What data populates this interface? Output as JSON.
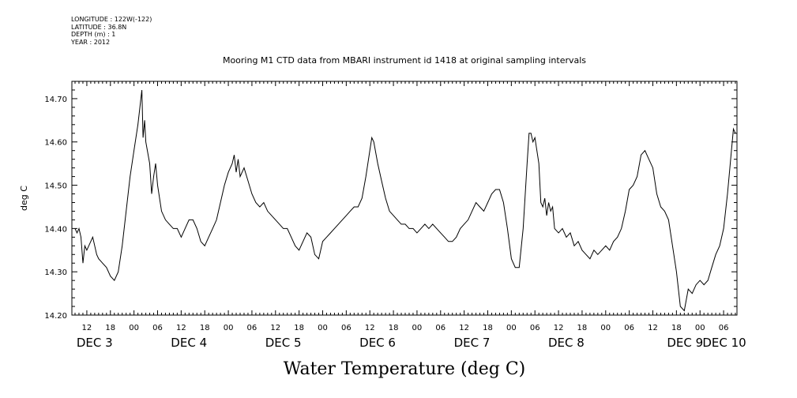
{
  "metadata": [
    "LONGITUDE : 122W(-122)",
    "LATITUDE : 36.8N",
    "DEPTH (m) : 1",
    "YEAR : 2012"
  ],
  "chart_data": {
    "type": "line",
    "title": "Mooring M1 CTD data from MBARI instrument id 1418 at original sampling intervals",
    "xlabel": "Water Temperature (deg C)",
    "ylabel": "deg C",
    "ylim": [
      14.2,
      14.74
    ],
    "xlim_hours": [
      0,
      168
    ],
    "y_ticks": [
      "14.20",
      "14.30",
      "14.40",
      "14.50",
      "14.60",
      "14.70"
    ],
    "x_hour_ticks": [
      "12",
      "18",
      "00",
      "06",
      "12",
      "18",
      "00",
      "06",
      "12",
      "18",
      "00",
      "06",
      "12",
      "18",
      "00",
      "06",
      "12",
      "18",
      "00",
      "06",
      "12",
      "18",
      "00",
      "06",
      "12",
      "18",
      "00",
      "06"
    ],
    "x_day_labels": [
      "DEC  3",
      "DEC  4",
      "DEC  5",
      "DEC  6",
      "DEC  7",
      "DEC  8",
      "DEC  9",
      "DEC 10"
    ],
    "series": [
      {
        "name": "",
        "points": [
          [
            0,
            14.4
          ],
          [
            0.5,
            14.39
          ],
          [
            1,
            14.4
          ],
          [
            1.5,
            14.38
          ],
          [
            2,
            14.32
          ],
          [
            2.5,
            14.36
          ],
          [
            3,
            14.35
          ],
          [
            3.5,
            14.36
          ],
          [
            4,
            14.37
          ],
          [
            4.5,
            14.38
          ],
          [
            5,
            14.36
          ],
          [
            5.5,
            14.34
          ],
          [
            6,
            14.33
          ],
          [
            7,
            14.32
          ],
          [
            8,
            14.31
          ],
          [
            9,
            14.29
          ],
          [
            10,
            14.28
          ],
          [
            11,
            14.3
          ],
          [
            12,
            14.36
          ],
          [
            13,
            14.44
          ],
          [
            14,
            14.52
          ],
          [
            15,
            14.58
          ],
          [
            16,
            14.64
          ],
          [
            16.5,
            14.68
          ],
          [
            17,
            14.72
          ],
          [
            17.3,
            14.61
          ],
          [
            17.7,
            14.65
          ],
          [
            18,
            14.6
          ],
          [
            19,
            14.55
          ],
          [
            19.5,
            14.48
          ],
          [
            20,
            14.52
          ],
          [
            20.5,
            14.55
          ],
          [
            21,
            14.5
          ],
          [
            22,
            14.44
          ],
          [
            23,
            14.42
          ],
          [
            24,
            14.41
          ],
          [
            25,
            14.4
          ],
          [
            26,
            14.4
          ],
          [
            27,
            14.38
          ],
          [
            28,
            14.4
          ],
          [
            29,
            14.42
          ],
          [
            30,
            14.42
          ],
          [
            31,
            14.4
          ],
          [
            32,
            14.37
          ],
          [
            33,
            14.36
          ],
          [
            34,
            14.38
          ],
          [
            35,
            14.4
          ],
          [
            36,
            14.42
          ],
          [
            37,
            14.46
          ],
          [
            38,
            14.5
          ],
          [
            39,
            14.53
          ],
          [
            40,
            14.55
          ],
          [
            40.5,
            14.57
          ],
          [
            41,
            14.53
          ],
          [
            41.5,
            14.56
          ],
          [
            42,
            14.52
          ],
          [
            43,
            14.54
          ],
          [
            44,
            14.51
          ],
          [
            45,
            14.48
          ],
          [
            46,
            14.46
          ],
          [
            47,
            14.45
          ],
          [
            48,
            14.46
          ],
          [
            49,
            14.44
          ],
          [
            50,
            14.43
          ],
          [
            51,
            14.42
          ],
          [
            52,
            14.41
          ],
          [
            53,
            14.4
          ],
          [
            54,
            14.4
          ],
          [
            55,
            14.38
          ],
          [
            56,
            14.36
          ],
          [
            57,
            14.35
          ],
          [
            58,
            14.37
          ],
          [
            59,
            14.39
          ],
          [
            60,
            14.38
          ],
          [
            61,
            14.34
          ],
          [
            62,
            14.33
          ],
          [
            63,
            14.37
          ],
          [
            64,
            14.38
          ],
          [
            65,
            14.39
          ],
          [
            66,
            14.4
          ],
          [
            67,
            14.41
          ],
          [
            68,
            14.42
          ],
          [
            69,
            14.43
          ],
          [
            70,
            14.44
          ],
          [
            71,
            14.45
          ],
          [
            72,
            14.45
          ],
          [
            73,
            14.47
          ],
          [
            74,
            14.52
          ],
          [
            75,
            14.58
          ],
          [
            75.5,
            14.61
          ],
          [
            76,
            14.6
          ],
          [
            77,
            14.55
          ],
          [
            78,
            14.51
          ],
          [
            79,
            14.47
          ],
          [
            80,
            14.44
          ],
          [
            81,
            14.43
          ],
          [
            82,
            14.42
          ],
          [
            83,
            14.41
          ],
          [
            84,
            14.41
          ],
          [
            85,
            14.4
          ],
          [
            86,
            14.4
          ],
          [
            87,
            14.39
          ],
          [
            88,
            14.4
          ],
          [
            89,
            14.41
          ],
          [
            90,
            14.4
          ],
          [
            91,
            14.41
          ],
          [
            92,
            14.4
          ],
          [
            93,
            14.39
          ],
          [
            94,
            14.38
          ],
          [
            95,
            14.37
          ],
          [
            96,
            14.37
          ],
          [
            97,
            14.38
          ],
          [
            98,
            14.4
          ],
          [
            99,
            14.41
          ],
          [
            100,
            14.42
          ],
          [
            101,
            14.44
          ],
          [
            102,
            14.46
          ],
          [
            103,
            14.45
          ],
          [
            104,
            14.44
          ],
          [
            105,
            14.46
          ],
          [
            106,
            14.48
          ],
          [
            107,
            14.49
          ],
          [
            108,
            14.49
          ],
          [
            109,
            14.46
          ],
          [
            110,
            14.4
          ],
          [
            111,
            14.33
          ],
          [
            112,
            14.31
          ],
          [
            113,
            14.31
          ],
          [
            114,
            14.4
          ],
          [
            115,
            14.55
          ],
          [
            115.5,
            14.62
          ],
          [
            116,
            14.62
          ],
          [
            116.5,
            14.6
          ],
          [
            117,
            14.61
          ],
          [
            118,
            14.55
          ],
          [
            118.5,
            14.46
          ],
          [
            119,
            14.45
          ],
          [
            119.5,
            14.47
          ],
          [
            120,
            14.43
          ],
          [
            120.5,
            14.46
          ],
          [
            121,
            14.44
          ],
          [
            121.5,
            14.45
          ],
          [
            122,
            14.4
          ],
          [
            123,
            14.39
          ],
          [
            124,
            14.4
          ],
          [
            125,
            14.38
          ],
          [
            126,
            14.39
          ],
          [
            127,
            14.36
          ],
          [
            128,
            14.37
          ],
          [
            129,
            14.35
          ],
          [
            130,
            14.34
          ],
          [
            131,
            14.33
          ],
          [
            132,
            14.35
          ],
          [
            133,
            14.34
          ],
          [
            134,
            14.35
          ],
          [
            135,
            14.36
          ],
          [
            136,
            14.35
          ],
          [
            137,
            14.37
          ],
          [
            138,
            14.38
          ],
          [
            139,
            14.4
          ],
          [
            140,
            14.44
          ],
          [
            141,
            14.49
          ],
          [
            142,
            14.5
          ],
          [
            143,
            14.52
          ],
          [
            144,
            14.57
          ],
          [
            145,
            14.58
          ],
          [
            146,
            14.56
          ],
          [
            147,
            14.54
          ],
          [
            148,
            14.48
          ],
          [
            149,
            14.45
          ],
          [
            150,
            14.44
          ],
          [
            151,
            14.42
          ],
          [
            152,
            14.36
          ],
          [
            153,
            14.3
          ],
          [
            154,
            14.22
          ],
          [
            155,
            14.21
          ],
          [
            156,
            14.26
          ],
          [
            157,
            14.25
          ],
          [
            158,
            14.27
          ],
          [
            159,
            14.28
          ],
          [
            160,
            14.27
          ],
          [
            161,
            14.28
          ],
          [
            162,
            14.31
          ],
          [
            163,
            14.34
          ],
          [
            164,
            14.36
          ],
          [
            165,
            14.4
          ],
          [
            166,
            14.48
          ],
          [
            167,
            14.58
          ],
          [
            167.5,
            14.63
          ],
          [
            168,
            14.62
          ]
        ]
      }
    ]
  }
}
